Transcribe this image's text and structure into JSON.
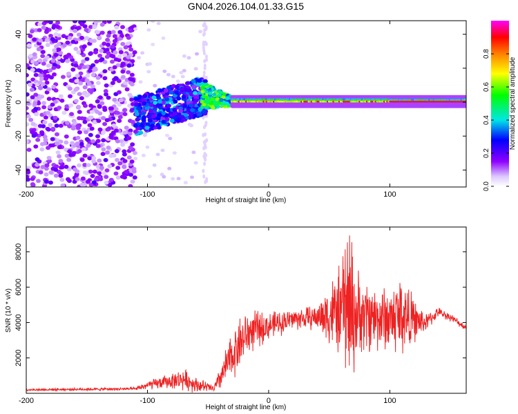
{
  "chart_data": [
    {
      "type": "heatmap",
      "title": "GN04.2026.104.01.33.G15",
      "xlabel": "Height of straight line (km)",
      "ylabel": "Frequency (Hz)",
      "xlim": [
        -200,
        163
      ],
      "ylim": [
        -50,
        48
      ],
      "xticks": [
        "-200",
        "-100",
        "0",
        "100"
      ],
      "yticks": [
        "40",
        "20",
        "0",
        "-20",
        "-40"
      ],
      "colorbar": {
        "label": "Normalized spectral amplitude",
        "range": [
          0,
          1
        ],
        "ticks": [
          "0.0",
          "0.2",
          "0.4",
          "0.6",
          "0.8"
        ]
      },
      "description_regions": [
        {
          "x_range": [
            -200,
            -110
          ],
          "f_range": [
            -50,
            48
          ],
          "amplitude": 0.1
        },
        {
          "x_range": [
            -110,
            -55
          ],
          "f_range": [
            -15,
            15
          ],
          "amplitude": 0.25
        },
        {
          "x_range": [
            -55,
            -30
          ],
          "f_range": [
            -10,
            12
          ],
          "amplitude": 0.45
        },
        {
          "x_range": [
            -30,
            163
          ],
          "f_range": [
            0,
            0
          ],
          "amplitude": 0.95
        }
      ]
    },
    {
      "type": "line",
      "xlabel": "Height of straight line (km)",
      "ylabel": "SNR (10 * v/v)",
      "xlim": [
        -200,
        163
      ],
      "ylim": [
        0,
        9400
      ],
      "xticks": [
        "-200",
        "-100",
        "0",
        "100"
      ],
      "yticks": [
        "2000",
        "4000",
        "6000",
        "8000"
      ],
      "series": [
        {
          "name": "SNR",
          "color": "#ee2222",
          "envelope": {
            "x": [
              -200,
              -110,
              -100,
              -80,
              -70,
              -60,
              -45,
              -35,
              -25,
              -15,
              0,
              20,
              40,
              50,
              60,
              67,
              75,
              90,
              100,
              110,
              120,
              130,
              140,
              150,
              163
            ],
            "mean": [
              200,
              250,
              450,
              700,
              800,
              500,
              250,
              1500,
              2800,
              3500,
              3800,
              4200,
              4300,
              4500,
              4600,
              4500,
              4400,
              4300,
              4200,
              4500,
              4100,
              4000,
              4600,
              4300,
              3700
            ],
            "amp": [
              80,
              100,
              300,
              500,
              700,
              500,
              250,
              1300,
              1800,
              1400,
              900,
              700,
              800,
              2200,
              3000,
              4700,
              2600,
              2200,
              2200,
              2900,
              1400,
              600,
              300,
              250,
              200
            ]
          }
        }
      ]
    }
  ]
}
